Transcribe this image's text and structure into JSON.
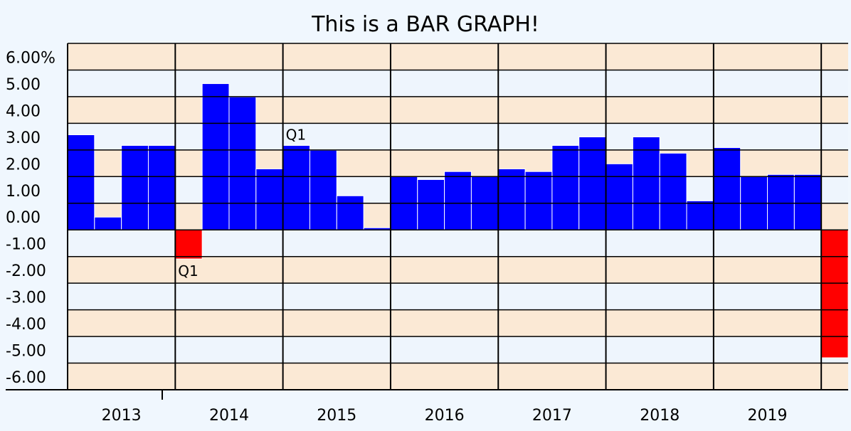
{
  "chart_data": {
    "type": "bar",
    "title": "This is a BAR GRAPH!",
    "categories": [
      null,
      null,
      null,
      null,
      "Q1",
      null,
      null,
      null,
      "Q1",
      null,
      null,
      null,
      null,
      null,
      null,
      null,
      null,
      null,
      null,
      null,
      null,
      null,
      null,
      null,
      null,
      null,
      null,
      null,
      null
    ],
    "groups": [
      "2013",
      "2014",
      "2015",
      "2016",
      "2017",
      "2018",
      "2019",
      null
    ],
    "values": [
      3.57,
      0.48,
      3.17,
      3.17,
      -1.09,
      5.49,
      4.99,
      2.29,
      3.17,
      2.99,
      1.28,
      0.08,
      2.0,
      1.89,
      2.19,
      2.0,
      2.29,
      2.19,
      3.17,
      3.49,
      2.48,
      3.49,
      2.88,
      1.09,
      3.09,
      2.0,
      2.08,
      2.08,
      -4.8
    ],
    "color": "#0000ff",
    "negative_color": "#ff0000",
    "label_color": "#008000",
    "ylim": [
      -6,
      7
    ],
    "yticks": [
      {
        "value": 6,
        "label": "6.00%"
      },
      {
        "value": 5,
        "label": "5.00"
      },
      {
        "value": 4,
        "label": "4.00"
      },
      {
        "value": 3,
        "label": "3.00"
      },
      {
        "value": 2,
        "label": "2.00"
      },
      {
        "value": 1,
        "label": "1.00"
      },
      {
        "value": 0,
        "label": "0.00"
      },
      {
        "value": -1,
        "label": "-1.00"
      },
      {
        "value": -2,
        "label": "-2.00"
      },
      {
        "value": -3,
        "label": "-3.00"
      },
      {
        "value": -4,
        "label": "-4.00"
      },
      {
        "value": -5,
        "label": "-5.00"
      },
      {
        "value": -6,
        "label": "-6.00"
      }
    ],
    "grid": true
  }
}
